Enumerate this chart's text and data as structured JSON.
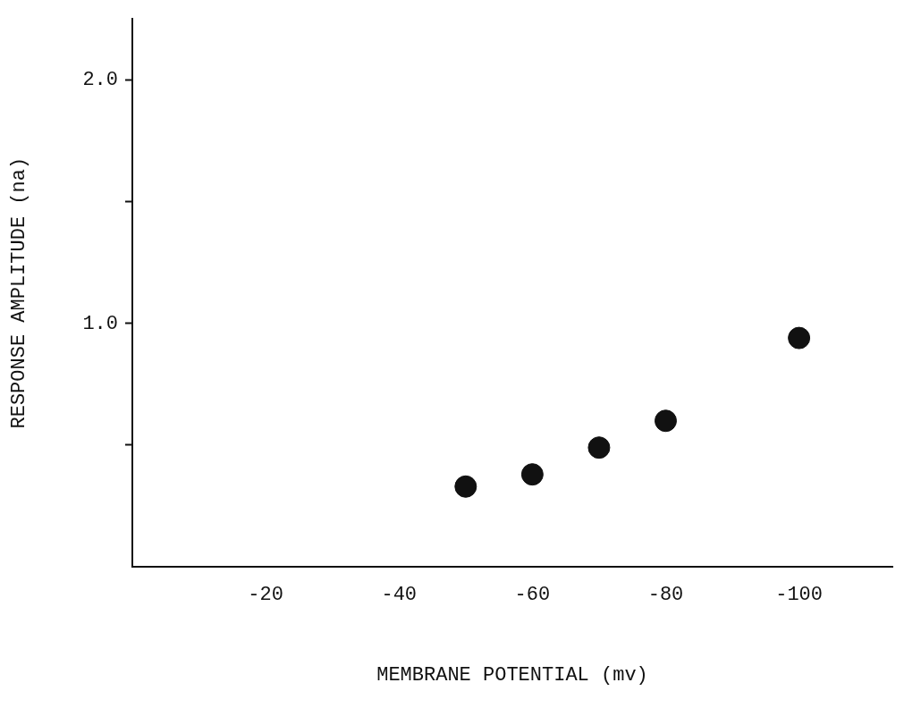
{
  "chart_data": {
    "type": "scatter",
    "xlabel": "MEMBRANE POTENTIAL (mv)",
    "ylabel": "RESPONSE AMPLITUDE (na)",
    "x": [
      -50,
      -60,
      -70,
      -80,
      -100
    ],
    "series": [
      {
        "color": "#111111",
        "values": [
          0.33,
          0.38,
          0.49,
          0.6,
          0.94
        ]
      }
    ],
    "xlim": [
      0,
      -114
    ],
    "xticks": [
      -20,
      -40,
      -60,
      -80,
      -100
    ],
    "ylim": [
      0,
      2.25
    ],
    "yticks": [
      {
        "value": 0.5,
        "label": null
      },
      {
        "value": 1.0,
        "label": "1.0"
      },
      {
        "value": 1.5,
        "label": null
      },
      {
        "value": 2.0,
        "label": "2.0"
      }
    ],
    "grid": false,
    "legend": false,
    "marker": "circle"
  }
}
